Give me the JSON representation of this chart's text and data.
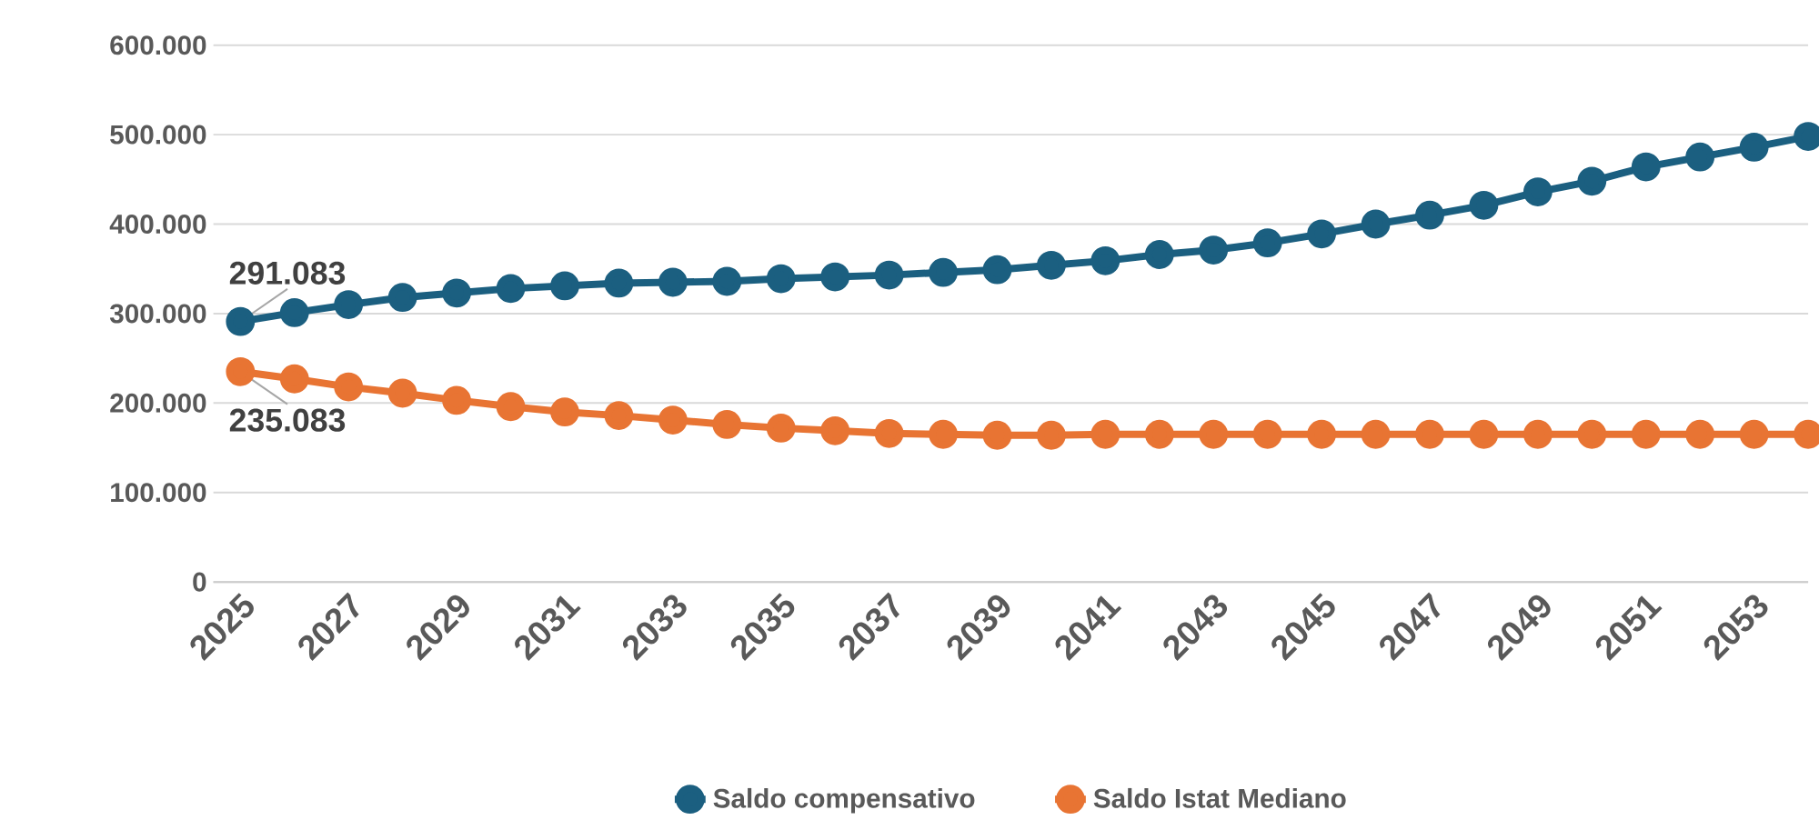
{
  "chart_data": {
    "type": "line",
    "x": [
      2025,
      2026,
      2027,
      2028,
      2029,
      2030,
      2031,
      2032,
      2033,
      2034,
      2035,
      2036,
      2037,
      2038,
      2039,
      2040,
      2041,
      2042,
      2043,
      2044,
      2045,
      2046,
      2047,
      2048,
      2049,
      2050,
      2051,
      2052,
      2053,
      2054
    ],
    "series": [
      {
        "name": "Saldo compensativo",
        "color": "#1b5f80",
        "values": [
          291083,
          301000,
          310000,
          318000,
          323000,
          328000,
          331000,
          334000,
          335000,
          336000,
          339000,
          341000,
          343000,
          346000,
          349000,
          354000,
          359000,
          366000,
          371000,
          379000,
          389000,
          400000,
          410000,
          421000,
          436000,
          448000,
          464000,
          475000,
          486000,
          498000
        ],
        "value_labels": [
          "291.083",
          null,
          null,
          null,
          null,
          null,
          null,
          null,
          null,
          null,
          null,
          null,
          null,
          null,
          null,
          null,
          null,
          null,
          null,
          null,
          null,
          null,
          null,
          null,
          null,
          null,
          null,
          null,
          null,
          null
        ]
      },
      {
        "name": "Saldo Istat Mediano",
        "color": "#e87433",
        "values": [
          235083,
          227000,
          218000,
          211000,
          203000,
          196000,
          190000,
          186000,
          181000,
          176000,
          172000,
          169000,
          166000,
          165000,
          164000,
          164000,
          165000,
          165000,
          165000,
          165000,
          165000,
          165000,
          165000,
          165000,
          165000,
          165000,
          165000,
          165000,
          165000,
          165000
        ],
        "value_labels": [
          "235.083",
          null,
          null,
          null,
          null,
          null,
          null,
          null,
          null,
          null,
          null,
          null,
          null,
          null,
          null,
          null,
          null,
          null,
          null,
          null,
          null,
          null,
          null,
          null,
          null,
          null,
          null,
          null,
          null,
          null
        ]
      }
    ],
    "xlim": [
      2024.5,
      2054
    ],
    "xticks": [
      2025,
      2027,
      2029,
      2031,
      2033,
      2035,
      2037,
      2039,
      2041,
      2043,
      2045,
      2047,
      2049,
      2051,
      2053
    ],
    "ylim": [
      0,
      600000
    ],
    "yticks": [
      {
        "value": 0,
        "label": "0"
      },
      {
        "value": 100000,
        "label": "100.000"
      },
      {
        "value": 200000,
        "label": "200.000"
      },
      {
        "value": 300000,
        "label": "300.000"
      },
      {
        "value": 400000,
        "label": "400.000"
      },
      {
        "value": 500000,
        "label": "500.000"
      },
      {
        "value": 600000,
        "label": "600.000"
      }
    ],
    "grid": "y",
    "legend": "bottom",
    "marker": "circle",
    "line_style": "solid"
  }
}
